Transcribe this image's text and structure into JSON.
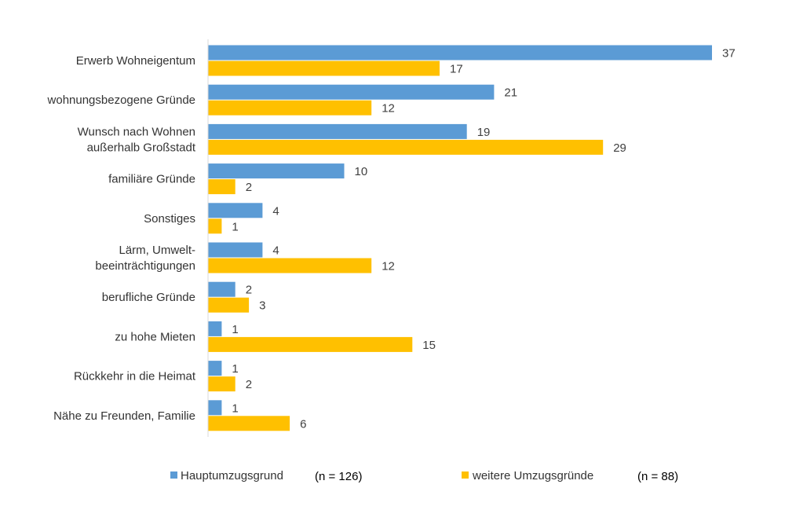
{
  "chart_data": {
    "type": "bar",
    "orientation": "horizontal",
    "categories": [
      [
        "Erwerb Wohneigentum"
      ],
      [
        "wohnungsbezogene Gründe"
      ],
      [
        "Wunsch nach Wohnen",
        "außerhalb Großstadt"
      ],
      [
        "familiäre Gründe"
      ],
      [
        "Sonstiges"
      ],
      [
        "Lärm, Umwelt-",
        "beeinträchtigungen"
      ],
      [
        "berufliche Gründe"
      ],
      [
        "zu hohe Mieten"
      ],
      [
        "Rückkehr in die Heimat"
      ],
      [
        "Nähe zu Freunden, Familie"
      ]
    ],
    "series": [
      {
        "name": "Hauptumzugsgrund",
        "n_label": "(n = 126)",
        "color": "#5b9bd5",
        "values": [
          37,
          21,
          19,
          10,
          4,
          4,
          2,
          1,
          1,
          1
        ]
      },
      {
        "name": "weitere Umzugsgründe",
        "n_label": "(n = 88)",
        "color": "#ffc000",
        "values": [
          17,
          12,
          29,
          2,
          1,
          12,
          3,
          15,
          2,
          6
        ]
      }
    ],
    "xlim": [
      0,
      37
    ],
    "grid": false,
    "legend_position": "bottom",
    "title": "",
    "xlabel": "",
    "ylabel": ""
  }
}
